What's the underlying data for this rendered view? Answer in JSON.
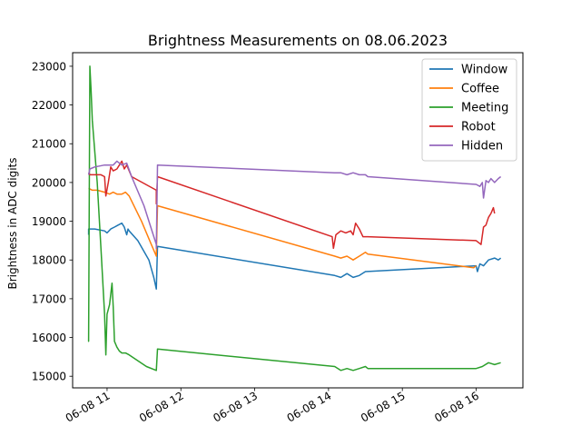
{
  "chart_data": {
    "type": "line",
    "title": "Brightness Measurements on 08.06.2023",
    "xlabel": "",
    "ylabel": "Brightness in ADC digits",
    "x_unit": "time of day",
    "xlim": [
      "10:32",
      "16:38"
    ],
    "ylim": [
      14700,
      23350
    ],
    "x_ticks": [
      {
        "time": "11:00",
        "label": "06-08 11"
      },
      {
        "time": "12:00",
        "label": "06-08 12"
      },
      {
        "time": "13:00",
        "label": "06-08 13"
      },
      {
        "time": "14:00",
        "label": "06-08 14"
      },
      {
        "time": "15:00",
        "label": "06-08 15"
      },
      {
        "time": "16:00",
        "label": "06-08 16"
      }
    ],
    "y_ticks": [
      15000,
      16000,
      17000,
      18000,
      19000,
      20000,
      21000,
      22000,
      23000
    ],
    "grid": false,
    "legend_position": "top-right",
    "series": [
      {
        "name": "Window",
        "color": "#1f77b4",
        "points": [
          [
            "10:45",
            18650
          ],
          [
            "10:45",
            18800
          ],
          [
            "10:50",
            18800
          ],
          [
            "10:58",
            18750
          ],
          [
            "11:00",
            18700
          ],
          [
            "11:03",
            18800
          ],
          [
            "11:06",
            18850
          ],
          [
            "11:09",
            18900
          ],
          [
            "11:12",
            18950
          ],
          [
            "11:14",
            18850
          ],
          [
            "11:16",
            18650
          ],
          [
            "11:17",
            18800
          ],
          [
            "11:18",
            18750
          ],
          [
            "11:25",
            18500
          ],
          [
            "11:34",
            18000
          ],
          [
            "11:38",
            17550
          ],
          [
            "11:40",
            17250
          ],
          [
            "11:41",
            18350
          ],
          [
            "14:05",
            17600
          ],
          [
            "14:10",
            17550
          ],
          [
            "14:15",
            17650
          ],
          [
            "14:20",
            17550
          ],
          [
            "14:25",
            17600
          ],
          [
            "14:30",
            17700
          ],
          [
            "16:00",
            17850
          ],
          [
            "16:01",
            17700
          ],
          [
            "16:03",
            17900
          ],
          [
            "16:06",
            17850
          ],
          [
            "16:10",
            18000
          ],
          [
            "16:15",
            18050
          ],
          [
            "16:18",
            18000
          ],
          [
            "16:20",
            18050
          ]
        ]
      },
      {
        "name": "Coffee",
        "color": "#ff7f0e",
        "points": [
          [
            "10:45",
            19850
          ],
          [
            "10:48",
            19800
          ],
          [
            "10:52",
            19800
          ],
          [
            "10:58",
            19750
          ],
          [
            "11:02",
            19700
          ],
          [
            "11:05",
            19750
          ],
          [
            "11:08",
            19700
          ],
          [
            "11:12",
            19700
          ],
          [
            "11:15",
            19750
          ],
          [
            "11:18",
            19650
          ],
          [
            "11:28",
            19000
          ],
          [
            "11:36",
            18400
          ],
          [
            "11:40",
            18100
          ],
          [
            "11:41",
            19400
          ],
          [
            "14:05",
            18100
          ],
          [
            "14:10",
            18050
          ],
          [
            "14:15",
            18100
          ],
          [
            "14:20",
            18000
          ],
          [
            "14:25",
            18100
          ],
          [
            "14:30",
            18200
          ],
          [
            "14:32",
            18150
          ],
          [
            "15:58",
            17800
          ],
          [
            "16:00",
            17850
          ]
        ]
      },
      {
        "name": "Meeting",
        "color": "#2ca02c",
        "points": [
          [
            "10:45",
            15950
          ],
          [
            "10:45",
            15900
          ],
          [
            "10:46",
            23000
          ],
          [
            "10:47",
            22400
          ],
          [
            "10:48",
            21600
          ],
          [
            "10:52",
            20000
          ],
          [
            "10:55",
            18300
          ],
          [
            "10:58",
            16600
          ],
          [
            "10:59",
            15550
          ],
          [
            "11:00",
            16600
          ],
          [
            "11:02",
            16850
          ],
          [
            "11:04",
            17400
          ],
          [
            "11:05",
            16800
          ],
          [
            "11:06",
            15900
          ],
          [
            "11:08",
            15750
          ],
          [
            "11:10",
            15650
          ],
          [
            "11:12",
            15600
          ],
          [
            "11:15",
            15600
          ],
          [
            "11:18",
            15550
          ],
          [
            "11:25",
            15400
          ],
          [
            "11:32",
            15250
          ],
          [
            "11:40",
            15150
          ],
          [
            "11:41",
            15700
          ],
          [
            "14:05",
            15250
          ],
          [
            "14:10",
            15150
          ],
          [
            "14:15",
            15200
          ],
          [
            "14:20",
            15150
          ],
          [
            "14:25",
            15200
          ],
          [
            "14:30",
            15250
          ],
          [
            "14:32",
            15200
          ],
          [
            "16:00",
            15200
          ],
          [
            "16:05",
            15250
          ],
          [
            "16:10",
            15350
          ],
          [
            "16:15",
            15300
          ],
          [
            "16:20",
            15350
          ]
        ]
      },
      {
        "name": "Robot",
        "color": "#d62728",
        "points": [
          [
            "10:45",
            20250
          ],
          [
            "10:46",
            20200
          ],
          [
            "10:50",
            20200
          ],
          [
            "10:55",
            20200
          ],
          [
            "10:58",
            20150
          ],
          [
            "10:59",
            19650
          ],
          [
            "11:01",
            20000
          ],
          [
            "11:03",
            20400
          ],
          [
            "11:05",
            20300
          ],
          [
            "11:08",
            20350
          ],
          [
            "11:10",
            20450
          ],
          [
            "11:12",
            20550
          ],
          [
            "11:14",
            20350
          ],
          [
            "11:16",
            20450
          ],
          [
            "11:20",
            20150
          ],
          [
            "11:40",
            19800
          ],
          [
            "11:40",
            19450
          ],
          [
            "11:41",
            20150
          ],
          [
            "14:03",
            18600
          ],
          [
            "14:04",
            18300
          ],
          [
            "14:06",
            18650
          ],
          [
            "14:10",
            18750
          ],
          [
            "14:14",
            18700
          ],
          [
            "14:18",
            18750
          ],
          [
            "14:20",
            18650
          ],
          [
            "14:22",
            18950
          ],
          [
            "14:25",
            18800
          ],
          [
            "14:28",
            18600
          ],
          [
            "14:32",
            18600
          ],
          [
            "16:00",
            18500
          ],
          [
            "16:04",
            18400
          ],
          [
            "16:06",
            18850
          ],
          [
            "16:08",
            18900
          ],
          [
            "16:10",
            19100
          ],
          [
            "16:12",
            19200
          ],
          [
            "16:14",
            19350
          ],
          [
            "16:15",
            19200
          ]
        ]
      },
      {
        "name": "Hidden",
        "color": "#9467bd",
        "points": [
          [
            "10:45",
            20200
          ],
          [
            "10:46",
            20350
          ],
          [
            "10:50",
            20400
          ],
          [
            "10:58",
            20450
          ],
          [
            "11:05",
            20450
          ],
          [
            "11:08",
            20550
          ],
          [
            "11:12",
            20450
          ],
          [
            "11:16",
            20500
          ],
          [
            "11:20",
            20150
          ],
          [
            "11:30",
            19400
          ],
          [
            "11:40",
            18400
          ],
          [
            "11:40",
            18300
          ],
          [
            "11:41",
            20450
          ],
          [
            "14:05",
            20250
          ],
          [
            "14:10",
            20250
          ],
          [
            "14:15",
            20200
          ],
          [
            "14:20",
            20250
          ],
          [
            "14:25",
            20200
          ],
          [
            "14:30",
            20200
          ],
          [
            "14:32",
            20150
          ],
          [
            "16:00",
            19950
          ],
          [
            "16:03",
            19900
          ],
          [
            "16:05",
            20000
          ],
          [
            "16:06",
            19600
          ],
          [
            "16:08",
            20050
          ],
          [
            "16:10",
            20000
          ],
          [
            "16:12",
            20100
          ],
          [
            "16:15",
            20000
          ],
          [
            "16:18",
            20100
          ],
          [
            "16:20",
            20150
          ]
        ]
      }
    ]
  }
}
